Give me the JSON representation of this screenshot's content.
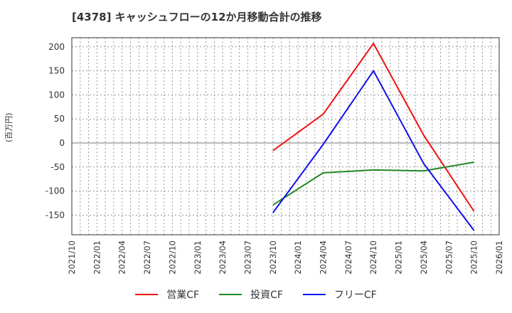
{
  "title": "[4378]  キャッシュフローの12か月移動合計の推移",
  "y_axis_label": "(百万円)",
  "legend": [
    {
      "label": "営業CF",
      "color": "#ee1111"
    },
    {
      "label": "投資CF",
      "color": "#228822"
    },
    {
      "label": "フリーCF",
      "color": "#1111ee"
    }
  ],
  "chart_data": {
    "type": "line",
    "title": "[4378]  キャッシュフローの12か月移動合計の推移",
    "xlabel": "",
    "ylabel": "(百万円)",
    "ylim": [
      -190,
      220
    ],
    "yticks": [
      200,
      150,
      100,
      50,
      0,
      -50,
      -100,
      -150
    ],
    "xticks": [
      "2021/10",
      "2022/01",
      "2022/04",
      "2022/07",
      "2022/10",
      "2023/01",
      "2023/04",
      "2023/07",
      "2023/10",
      "2024/01",
      "2024/04",
      "2024/07",
      "2024/10",
      "2025/01",
      "2025/04",
      "2025/07",
      "2025/10",
      "2026/01"
    ],
    "x": [
      "2023/10",
      "2024/04",
      "2024/10",
      "2025/04",
      "2025/10"
    ],
    "series": [
      {
        "name": "営業CF",
        "color": "#ee1111",
        "values": [
          -16,
          60,
          207,
          16,
          -142
        ]
      },
      {
        "name": "投資CF",
        "color": "#228822",
        "values": [
          -129,
          -62,
          -56,
          -58,
          -40
        ]
      },
      {
        "name": "フリーCF",
        "color": "#1111ee",
        "values": [
          -145,
          -3,
          150,
          -43,
          -182
        ]
      }
    ],
    "grid": true,
    "legend_position": "bottom"
  }
}
